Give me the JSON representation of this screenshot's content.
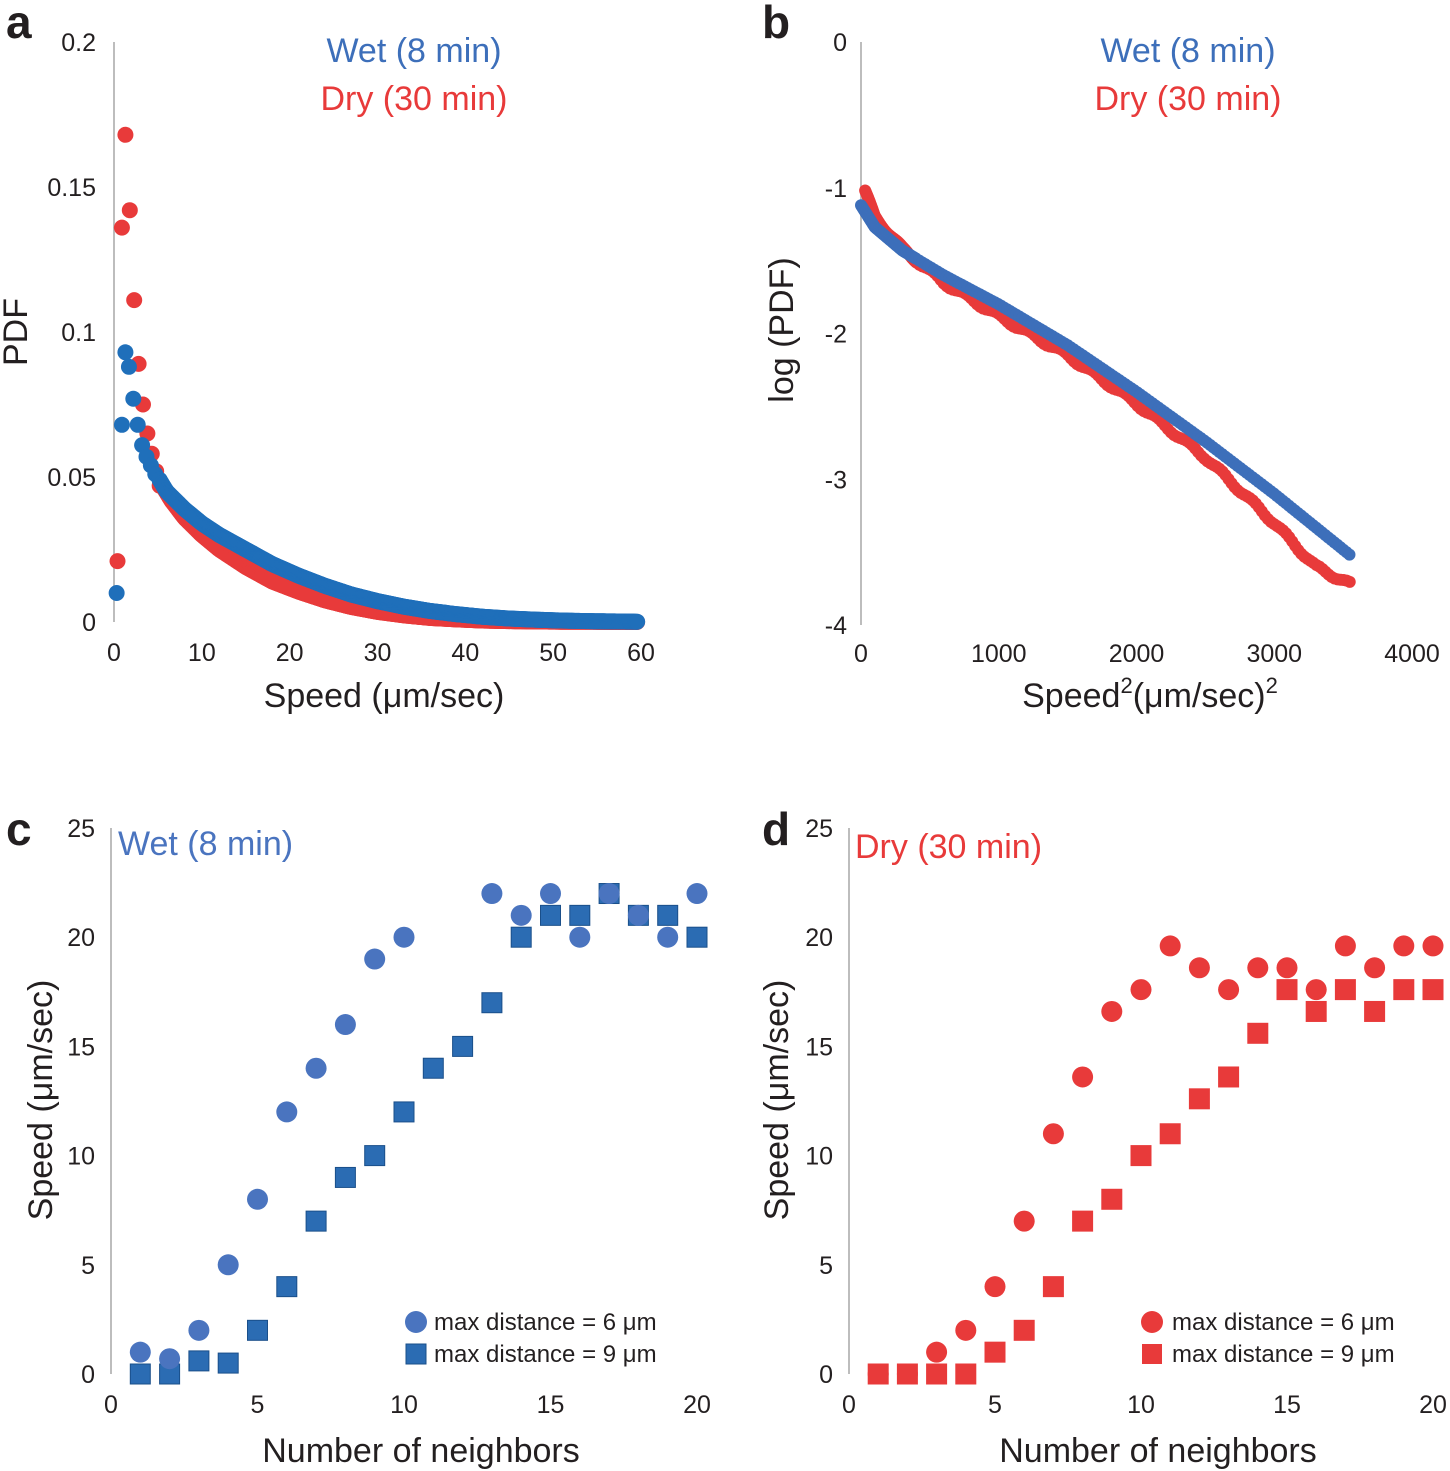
{
  "colors": {
    "wet": "#3d6fba",
    "wet_points": "#1f6fba",
    "dry": "#e83a3a",
    "wet_c": "#4a74bf",
    "wet_c_square": "#2b6cb3"
  },
  "chart_data": [
    {
      "panel": "a",
      "type": "scatter",
      "xlabel": "Speed (μm/sec)",
      "ylabel": "PDF",
      "xlim": [
        0,
        60
      ],
      "ylim": [
        0,
        0.2
      ],
      "xticks": [
        "0",
        "10",
        "20",
        "30",
        "40",
        "50",
        "60"
      ],
      "yticks": [
        "0",
        "0.05",
        "0.1",
        "0.15",
        "0.2"
      ],
      "legend": [
        "Wet (8 min)",
        "Dry (30 min)"
      ],
      "series": [
        {
          "name": "Wet (8 min)",
          "color": "wet_points",
          "x": [
            0.3,
            0.9,
            1.3,
            1.7,
            2.2,
            2.7,
            3.2,
            3.7,
            4.2,
            4.7,
            5.2,
            6,
            7,
            8,
            10,
            12,
            15,
            18,
            21,
            24,
            27,
            30,
            33,
            36,
            39,
            42,
            45,
            48,
            51,
            54,
            57,
            59.5
          ],
          "y": [
            0.01,
            0.068,
            0.093,
            0.088,
            0.077,
            0.068,
            0.061,
            0.057,
            0.054,
            0.051,
            0.049,
            0.045,
            0.042,
            0.039,
            0.034,
            0.03,
            0.025,
            0.02,
            0.016,
            0.0125,
            0.0095,
            0.0072,
            0.0053,
            0.0038,
            0.0027,
            0.0018,
            0.0012,
            0.0008,
            0.0005,
            0.0003,
            0.0002,
            0.0001
          ]
        },
        {
          "name": "Dry (30 min)",
          "color": "dry",
          "x": [
            0.4,
            0.9,
            1.3,
            1.8,
            2.3,
            2.8,
            3.3,
            3.8,
            4.3,
            4.8,
            5.5,
            6.5,
            8,
            10,
            12,
            15,
            18,
            21,
            24,
            27,
            30,
            33,
            36,
            39,
            42,
            45,
            48,
            51,
            54,
            57,
            59.5
          ],
          "y": [
            0.021,
            0.136,
            0.168,
            0.142,
            0.111,
            0.089,
            0.075,
            0.065,
            0.058,
            0.052,
            0.047,
            0.042,
            0.036,
            0.03,
            0.025,
            0.019,
            0.014,
            0.0105,
            0.0075,
            0.0052,
            0.0035,
            0.0023,
            0.0014,
            0.0009,
            0.0005,
            0.0003,
            0.0002,
            0.0001,
            0.0001,
            0.0,
            0.0
          ]
        }
      ]
    },
    {
      "panel": "b",
      "type": "scatter",
      "xlabel": "Speed",
      "xlabel_sup": "2",
      "xlabel_rest": "(μm/sec)",
      "xlabel_sup2": "2",
      "ylabel": "log (PDF)",
      "xlim": [
        0,
        4000
      ],
      "ylim": [
        -4,
        0
      ],
      "xticks": [
        "0",
        "1000",
        "2000",
        "3000",
        "4000"
      ],
      "yticks": [
        "0",
        "-1",
        "-2",
        "-3",
        "-4"
      ],
      "legend": [
        "Wet (8 min)",
        "Dry (30 min)"
      ],
      "series": [
        {
          "name": "Wet (8 min)",
          "color": "wet",
          "x": [
            0,
            100,
            300,
            600,
            1000,
            1500,
            2000,
            2500,
            3000,
            3550
          ],
          "y": [
            -1.12,
            -1.27,
            -1.43,
            -1.6,
            -1.8,
            -2.08,
            -2.4,
            -2.74,
            -3.1,
            -3.52
          ]
        },
        {
          "name": "Dry (30 min)",
          "color": "dry",
          "x": [
            30,
            100,
            300,
            600,
            1000,
            1500,
            2000,
            2500,
            3000,
            3300,
            3550
          ],
          "y": [
            -1.03,
            -1.2,
            -1.42,
            -1.65,
            -1.88,
            -2.15,
            -2.48,
            -2.85,
            -3.3,
            -3.6,
            -3.72
          ]
        }
      ]
    },
    {
      "panel": "c",
      "type": "scatter",
      "title": "Wet (8 min)",
      "xlabel": "Number of neighbors",
      "ylabel": "Speed (μm/sec)",
      "xlim": [
        0,
        20
      ],
      "ylim": [
        0,
        25
      ],
      "xticks": [
        "0",
        "5",
        "10",
        "15",
        "20"
      ],
      "yticks": [
        "0",
        "5",
        "10",
        "15",
        "20",
        "25"
      ],
      "series": [
        {
          "name": "max distance = 6 μm",
          "marker": "circle",
          "x": [
            1,
            2,
            3,
            4,
            5,
            6,
            7,
            8,
            9,
            10,
            13,
            14,
            15,
            16,
            17,
            18,
            19,
            20
          ],
          "y": [
            1,
            0.7,
            2,
            5,
            8,
            12,
            14,
            16,
            19,
            20,
            22,
            21,
            22,
            20,
            22,
            21,
            20,
            22
          ]
        },
        {
          "name": "max distance = 9 μm",
          "marker": "square",
          "x": [
            1,
            2,
            3,
            4,
            5,
            6,
            7,
            8,
            9,
            10,
            11,
            12,
            13,
            14,
            15,
            16,
            17,
            18,
            19,
            20
          ],
          "y": [
            0,
            0,
            0.6,
            0.5,
            2,
            4,
            7,
            9,
            10,
            12,
            14,
            15,
            17,
            20,
            21,
            21,
            22,
            21,
            21,
            20
          ]
        }
      ]
    },
    {
      "panel": "d",
      "type": "scatter",
      "title": "Dry (30 min)",
      "xlabel": "Number of neighbors",
      "ylabel": "Speed (μm/sec)",
      "xlim": [
        0,
        20
      ],
      "ylim": [
        0,
        25
      ],
      "xticks": [
        "0",
        "5",
        "10",
        "15",
        "20"
      ],
      "yticks": [
        "0",
        "5",
        "10",
        "15",
        "20",
        "25"
      ],
      "series": [
        {
          "name": "max distance = 6 μm",
          "marker": "circle",
          "x": [
            1,
            2,
            3,
            4,
            5,
            6,
            7,
            8,
            9,
            10,
            11,
            12,
            13,
            14,
            15,
            16,
            17,
            18,
            19,
            20
          ],
          "y": [
            0,
            0,
            1,
            2,
            4,
            7,
            11,
            13.6,
            16.6,
            17.6,
            19.6,
            18.6,
            17.6,
            18.6,
            18.6,
            17.6,
            19.6,
            18.6,
            19.6,
            19.6
          ]
        },
        {
          "name": "max distance = 9 μm",
          "marker": "square",
          "x": [
            1,
            2,
            3,
            4,
            5,
            6,
            7,
            8,
            9,
            10,
            11,
            12,
            13,
            14,
            15,
            16,
            17,
            18,
            19,
            20
          ],
          "y": [
            0,
            0,
            0,
            0,
            1,
            2,
            4,
            7,
            8,
            10,
            11,
            12.6,
            13.6,
            15.6,
            17.6,
            16.6,
            17.6,
            16.6,
            17.6,
            17.6
          ]
        }
      ]
    }
  ]
}
